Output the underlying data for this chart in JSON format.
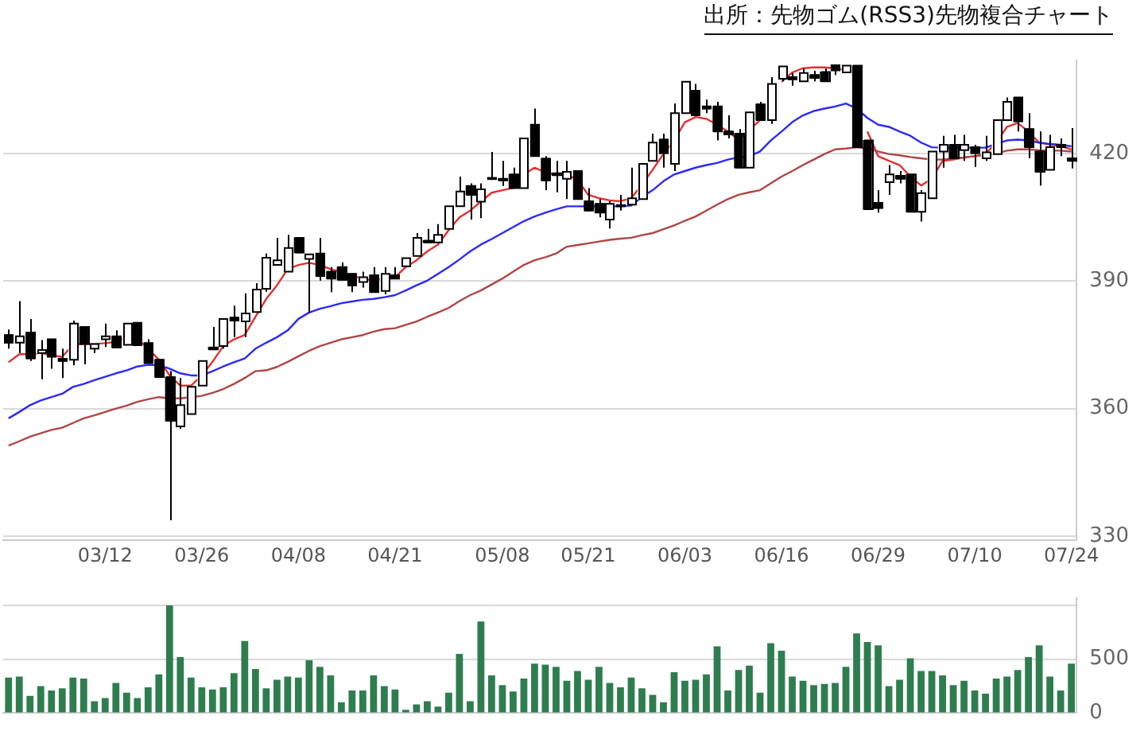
{
  "chart_data": [
    {
      "type": "candlestick",
      "title": "出所：先物ゴム(RSS3)先物複合チャート",
      "categories": [
        null,
        null,
        null,
        null,
        null,
        null,
        null,
        null,
        null,
        "03/12",
        null,
        null,
        null,
        null,
        null,
        null,
        null,
        null,
        "03/26",
        null,
        null,
        null,
        null,
        null,
        null,
        null,
        null,
        "04/08",
        null,
        null,
        null,
        null,
        null,
        null,
        null,
        null,
        "04/21",
        null,
        null,
        null,
        null,
        null,
        null,
        null,
        null,
        null,
        "05/08",
        null,
        null,
        null,
        null,
        null,
        null,
        null,
        "05/21",
        null,
        null,
        null,
        null,
        null,
        null,
        null,
        null,
        "06/03",
        null,
        null,
        null,
        null,
        null,
        null,
        null,
        null,
        "06/16",
        null,
        null,
        null,
        null,
        null,
        null,
        null,
        null,
        "06/29",
        null,
        null,
        null,
        null,
        null,
        null,
        null,
        null,
        "07/10",
        null,
        null,
        null,
        null,
        null,
        null,
        null,
        null,
        "07/24"
      ],
      "ohlc": [
        [
          377.3,
          378.6,
          374.1,
          375.5
        ],
        [
          375.5,
          385.3,
          373.1,
          377.0
        ],
        [
          377.9,
          381.1,
          371.2,
          371.8
        ],
        [
          373.1,
          376.1,
          366.9,
          373.8
        ],
        [
          376.3,
          376.5,
          369.4,
          372.2
        ],
        [
          371.7,
          374.1,
          367.2,
          371.2
        ],
        [
          371.5,
          380.7,
          370.2,
          380.0
        ],
        [
          379.2,
          379.5,
          370.4,
          375.2
        ],
        [
          374.1,
          375.7,
          373.1,
          375.2
        ],
        [
          376.3,
          380.0,
          374.5,
          377.0
        ],
        [
          377.0,
          378.4,
          374.1,
          374.4
        ],
        [
          375.0,
          380.3,
          374.7,
          380.0
        ],
        [
          380.2,
          380.2,
          374.7,
          374.9
        ],
        [
          375.4,
          376.3,
          370.4,
          370.7
        ],
        [
          371.5,
          371.8,
          367.2,
          367.4
        ],
        [
          367.4,
          368.8,
          333.7,
          357.1
        ],
        [
          355.8,
          367.2,
          355.2,
          360.8
        ],
        [
          358.7,
          365.6,
          358.2,
          365.1
        ],
        [
          365.4,
          371.5,
          365.1,
          371.2
        ],
        [
          374.4,
          379.2,
          373.9,
          373.9
        ],
        [
          374.7,
          381.6,
          374.1,
          381.1
        ],
        [
          381.4,
          384.2,
          376.8,
          380.7
        ],
        [
          380.5,
          387.1,
          376.8,
          382.4
        ],
        [
          382.7,
          389.5,
          382.4,
          388.0
        ],
        [
          388.2,
          396.5,
          387.5,
          395.5
        ],
        [
          393.8,
          400.2,
          393.3,
          394.9
        ],
        [
          392.2,
          400.9,
          392.2,
          397.8
        ],
        [
          400.2,
          400.2,
          396.5,
          396.7
        ],
        [
          395.2,
          396.5,
          382.6,
          396.3
        ],
        [
          396.5,
          400.2,
          390.1,
          391.2
        ],
        [
          392.2,
          393.3,
          387.4,
          390.6
        ],
        [
          393.3,
          394.4,
          390.1,
          390.3
        ],
        [
          391.7,
          392.2,
          387.4,
          389.0
        ],
        [
          389.8,
          392.2,
          388.5,
          390.9
        ],
        [
          391.4,
          393.3,
          386.9,
          387.4
        ],
        [
          387.7,
          393.3,
          386.9,
          391.7
        ],
        [
          391.4,
          393.3,
          390.1,
          390.6
        ],
        [
          393.5,
          395.9,
          393.3,
          395.4
        ],
        [
          395.9,
          401.3,
          395.6,
          400.2
        ],
        [
          399.5,
          402.3,
          399.1,
          399.1
        ],
        [
          399.1,
          403.4,
          398.8,
          400.9
        ],
        [
          402.3,
          407.6,
          401.8,
          407.6
        ],
        [
          407.6,
          414.6,
          407.1,
          411.1
        ],
        [
          412.4,
          413.0,
          404.5,
          410.3
        ],
        [
          408.7,
          413.0,
          404.8,
          411.6
        ],
        [
          414.3,
          420.4,
          414.0,
          414.0
        ],
        [
          414.1,
          418.3,
          412.4,
          413.7
        ],
        [
          415.1,
          416.7,
          411.6,
          411.9
        ],
        [
          411.9,
          423.6,
          411.9,
          423.6
        ],
        [
          426.8,
          430.6,
          419.4,
          419.4
        ],
        [
          418.8,
          419.4,
          411.4,
          413.7
        ],
        [
          415.4,
          418.3,
          410.9,
          414.9
        ],
        [
          414.1,
          418.3,
          409.3,
          415.7
        ],
        [
          415.9,
          415.9,
          408.8,
          409.3
        ],
        [
          408.8,
          411.9,
          406.1,
          406.6
        ],
        [
          408.2,
          409.3,
          405.0,
          406.1
        ],
        [
          404.5,
          408.8,
          402.4,
          408.2
        ],
        [
          407.9,
          410.3,
          406.6,
          407.6
        ],
        [
          408.0,
          416.7,
          407.7,
          409.5
        ],
        [
          409.3,
          417.6,
          408.8,
          417.6
        ],
        [
          418.3,
          424.7,
          418.0,
          422.6
        ],
        [
          423.3,
          424.7,
          416.7,
          420.1
        ],
        [
          417.6,
          431.8,
          415.9,
          429.5
        ],
        [
          429.5,
          436.9,
          429.0,
          436.9
        ],
        [
          434.8,
          436.4,
          428.6,
          429.0
        ],
        [
          431.1,
          432.7,
          429.5,
          430.6
        ],
        [
          431.1,
          432.2,
          423.1,
          425.2
        ],
        [
          425.2,
          429.0,
          423.6,
          424.5
        ],
        [
          424.7,
          425.8,
          416.5,
          416.7
        ],
        [
          416.7,
          429.7,
          416.5,
          429.7
        ],
        [
          431.6,
          432.2,
          427.4,
          427.9
        ],
        [
          427.9,
          438.0,
          427.0,
          436.4
        ],
        [
          437.6,
          441.0,
          437.0,
          440.5
        ],
        [
          438.0,
          439.0,
          436.0,
          437.5
        ],
        [
          437.0,
          440.0,
          436.5,
          439.0
        ],
        [
          438.5,
          439.5,
          437.0,
          437.8
        ],
        [
          439.2,
          440.0,
          436.5,
          437.0
        ],
        [
          440.8,
          441.0,
          438.5,
          439.6
        ],
        [
          439.1,
          441.0,
          438.8,
          440.7
        ],
        [
          440.7,
          441.0,
          421.0,
          421.5
        ],
        [
          423.1,
          423.1,
          406.9,
          406.9
        ],
        [
          408.4,
          411.4,
          406.1,
          407.2
        ],
        [
          413.3,
          417.3,
          410.3,
          415.1
        ],
        [
          414.8,
          415.9,
          413.0,
          414.1
        ],
        [
          415.1,
          415.1,
          406.1,
          406.3
        ],
        [
          406.3,
          411.4,
          404.0,
          410.7
        ],
        [
          409.5,
          420.5,
          409.3,
          420.5
        ],
        [
          420.5,
          424.2,
          416.7,
          422.1
        ],
        [
          422.1,
          424.4,
          418.7,
          418.9
        ],
        [
          420.8,
          424.4,
          418.3,
          422.1
        ],
        [
          421.5,
          422.1,
          416.9,
          420.1
        ],
        [
          418.9,
          424.2,
          418.3,
          420.3
        ],
        [
          419.9,
          428.4,
          419.7,
          427.9
        ],
        [
          427.9,
          433.2,
          427.6,
          432.2
        ],
        [
          433.2,
          433.2,
          425.2,
          427.6
        ],
        [
          425.8,
          429.5,
          418.9,
          421.5
        ],
        [
          420.5,
          425.2,
          412.5,
          415.7
        ],
        [
          416.2,
          424.4,
          415.7,
          421.5
        ],
        [
          422.1,
          423.6,
          419.4,
          421.5
        ],
        [
          418.9,
          426.0,
          416.5,
          418.3
        ]
      ],
      "series": [
        {
          "type": "line",
          "color": "#b04545",
          "values": [
            351.3,
            352.3,
            353.4,
            354.2,
            355.0,
            355.5,
            356.6,
            357.7,
            358.4,
            359.2,
            360.0,
            360.7,
            361.6,
            362.2,
            362.7,
            362.4,
            362.4,
            362.7,
            363.0,
            363.7,
            364.6,
            365.8,
            367.2,
            368.8,
            369.0,
            369.8,
            371.0,
            372.3,
            373.6,
            374.7,
            375.5,
            376.3,
            376.8,
            377.3,
            378.1,
            378.7,
            378.9,
            379.7,
            380.5,
            381.6,
            382.6,
            383.7,
            385.3,
            386.7,
            387.8,
            389.2,
            390.6,
            392.2,
            393.8,
            394.9,
            395.6,
            396.5,
            398.1,
            398.5,
            398.9,
            399.3,
            399.7,
            400.0,
            400.2,
            400.8,
            401.3,
            402.2,
            403.1,
            404.2,
            405.2,
            406.6,
            408.0,
            409.3,
            410.3,
            410.9,
            411.4,
            413.0,
            414.6,
            415.9,
            417.3,
            418.6,
            419.9,
            421.0,
            421.2,
            421.5,
            421.2,
            420.5,
            419.9,
            419.6,
            419.2,
            418.9,
            418.6,
            418.6,
            418.9,
            419.1,
            419.4,
            419.7,
            420.1,
            420.7,
            421.0,
            421.0,
            420.8,
            420.7,
            420.7,
            420.5
          ]
        },
        {
          "type": "line",
          "color": "#2a2af5",
          "values": [
            357.7,
            359.2,
            360.8,
            361.9,
            362.7,
            363.5,
            365.1,
            365.8,
            366.7,
            367.5,
            368.3,
            369.0,
            369.9,
            370.3,
            370.2,
            369.4,
            368.3,
            367.8,
            367.8,
            368.8,
            369.9,
            370.9,
            371.8,
            374.1,
            375.5,
            376.8,
            378.4,
            381.1,
            382.6,
            383.5,
            384.1,
            384.8,
            385.2,
            385.6,
            385.8,
            386.2,
            386.7,
            387.8,
            389.0,
            390.1,
            391.7,
            393.3,
            395.1,
            397.0,
            398.6,
            399.9,
            401.3,
            402.7,
            404.1,
            405.2,
            406.1,
            406.9,
            407.6,
            407.6,
            407.6,
            407.6,
            407.6,
            407.6,
            407.8,
            409.8,
            411.4,
            413.5,
            415.1,
            415.9,
            416.7,
            417.3,
            417.8,
            418.6,
            419.1,
            419.4,
            420.5,
            423.1,
            425.2,
            427.4,
            429.0,
            430.0,
            430.6,
            431.1,
            431.8,
            430.6,
            428.4,
            426.8,
            426.3,
            425.2,
            424.2,
            422.6,
            421.5,
            421.4,
            421.4,
            421.4,
            421.4,
            421.4,
            422.3,
            423.1,
            423.3,
            423.1,
            422.6,
            422.3,
            422.1,
            421.7
          ]
        },
        {
          "type": "line",
          "color": "#e62e2e",
          "values": [
            370.9,
            372.8,
            372.8,
            373.1,
            372.5,
            372.2,
            375.0,
            375.2,
            375.2,
            375.4,
            375.7,
            376.8,
            376.5,
            374.1,
            371.5,
            367.8,
            365.4,
            365.4,
            367.8,
            371.0,
            374.7,
            376.3,
            377.3,
            381.6,
            385.8,
            389.0,
            392.8,
            393.8,
            394.3,
            393.8,
            392.8,
            392.2,
            391.2,
            390.6,
            390.1,
            390.6,
            390.9,
            393.3,
            394.9,
            397.0,
            398.6,
            402.0,
            405.0,
            406.6,
            408.7,
            410.8,
            411.4,
            411.9,
            415.1,
            416.7,
            415.6,
            415.1,
            415.1,
            413.8,
            410.3,
            409.5,
            409.0,
            408.8,
            409.5,
            412.7,
            416.2,
            419.9,
            423.1,
            427.4,
            428.6,
            428.2,
            426.8,
            425.2,
            423.3,
            425.5,
            427.9,
            null,
            436.9,
            439.1,
            440.1,
            440.3,
            440.3,
            440.1,
            439.6,
            null,
            425.2,
            419.4,
            418.3,
            417.3,
            414.6,
            412.5,
            414.1,
            418.3,
            418.6,
            419.1,
            419.4,
            419.9,
            422.6,
            426.3,
            427.2,
            425.2,
            422.6,
            422.1,
            421.8,
            421.0
          ]
        }
      ],
      "marker": "none",
      "ylim": [
        329,
        442
      ],
      "yticks": [
        330,
        360,
        390,
        420
      ],
      "grid": "y"
    },
    {
      "type": "bar",
      "color": "#2e7d4f",
      "categories": [
        null,
        null,
        null,
        null,
        null,
        null,
        null,
        null,
        null,
        null,
        null,
        null,
        null,
        null,
        null,
        null,
        null,
        null,
        null,
        null,
        null,
        null,
        null,
        null,
        null,
        null,
        null,
        null,
        null,
        null,
        null,
        null,
        null,
        null,
        null,
        null,
        null,
        null,
        null,
        null,
        null,
        null,
        null,
        null,
        null,
        null,
        null,
        null,
        null,
        null,
        null,
        null,
        null,
        null,
        null,
        null,
        null,
        null,
        null,
        null,
        null,
        null,
        null,
        null,
        null,
        null,
        null,
        null,
        null,
        null,
        null,
        null,
        null,
        null,
        null,
        null,
        null,
        null,
        null,
        null,
        null,
        null,
        null,
        null,
        null,
        null,
        null,
        null,
        null,
        null,
        null,
        null,
        null,
        null,
        null,
        null,
        null,
        null,
        null,
        null
      ],
      "values": [
        330,
        340,
        160,
        250,
        210,
        230,
        330,
        320,
        110,
        140,
        280,
        190,
        140,
        240,
        360,
        1000,
        520,
        330,
        240,
        220,
        240,
        370,
        670,
        410,
        230,
        310,
        340,
        330,
        490,
        430,
        350,
        100,
        210,
        210,
        350,
        250,
        220,
        30,
        80,
        110,
        60,
        190,
        550,
        110,
        850,
        350,
        260,
        200,
        320,
        460,
        450,
        430,
        300,
        390,
        310,
        430,
        280,
        240,
        330,
        230,
        170,
        100,
        380,
        300,
        310,
        360,
        620,
        210,
        400,
        440,
        190,
        650,
        580,
        340,
        300,
        260,
        270,
        280,
        430,
        740,
        660,
        630,
        250,
        310,
        510,
        390,
        390,
        350,
        260,
        300,
        210,
        180,
        320,
        340,
        400,
        520,
        630,
        340,
        210,
        460
      ],
      "ylim": [
        0,
        1070
      ],
      "yticks": [
        0,
        500,
        {
          "value": 1000,
          "label": null
        }
      ],
      "grid": "y",
      "tick_labels": "y"
    }
  ]
}
